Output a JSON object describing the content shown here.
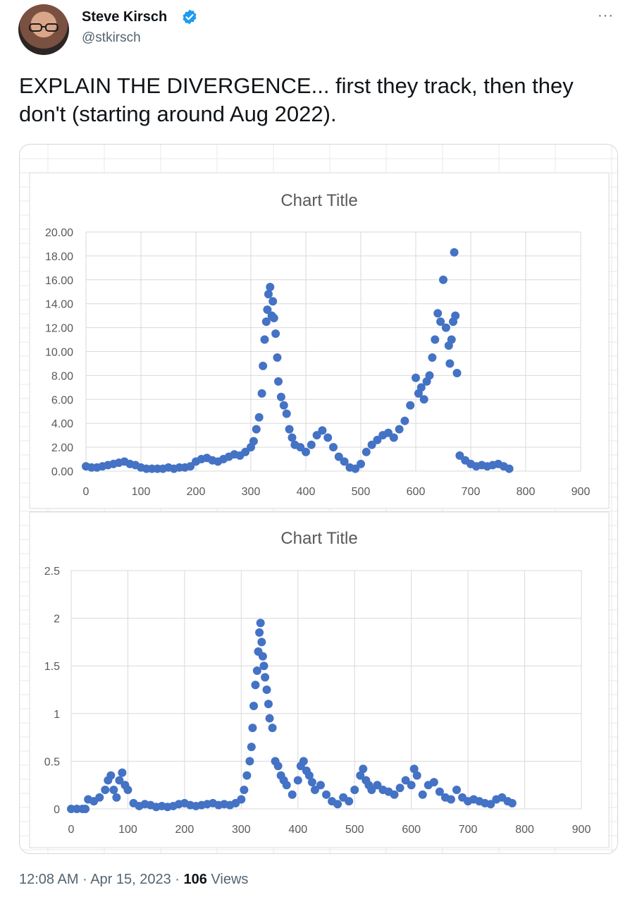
{
  "author": {
    "name": "Steve Kirsch",
    "handle": "@stkirsch",
    "verified_badge_icon": "verified-badge-icon",
    "more_icon": "more-options-icon",
    "more_glyph": "···"
  },
  "tweet": {
    "text": "EXPLAIN THE DIVERGENCE... first they track, then they don't (starting around Aug 2022)."
  },
  "footer": {
    "time": "12:08 AM",
    "sep1": " · ",
    "date": "Apr 15, 2023",
    "sep2": " · ",
    "views_count": "106",
    "views_label": " Views"
  },
  "colors": {
    "series": "#4472c4",
    "grid": "#d9d9d9",
    "axis_text": "#595959"
  },
  "chart_data": [
    {
      "type": "scatter",
      "title": "Chart Title",
      "xlim": [
        0,
        900
      ],
      "ylim": [
        0,
        20
      ],
      "x_ticks": [
        "0",
        "100",
        "200",
        "300",
        "400",
        "500",
        "600",
        "700",
        "800",
        "900"
      ],
      "y_ticks": [
        "0.00",
        "2.00",
        "4.00",
        "6.00",
        "8.00",
        "10.00",
        "12.00",
        "14.00",
        "16.00",
        "18.00",
        "20.00"
      ],
      "series": [
        {
          "x": [
            0,
            10,
            20,
            30,
            40,
            50,
            60,
            70,
            80,
            90,
            100,
            110,
            120,
            130,
            140,
            150,
            160,
            170,
            180,
            190,
            200,
            210,
            220,
            230,
            240,
            250,
            260,
            270,
            280,
            290,
            300,
            305,
            310,
            315,
            320,
            322,
            325,
            328,
            330,
            332,
            335,
            338,
            340,
            342,
            345,
            348,
            350,
            355,
            360,
            365,
            370,
            375,
            380,
            390,
            400,
            410,
            420,
            430,
            440,
            450,
            460,
            470,
            480,
            490,
            500,
            510,
            520,
            530,
            540,
            550,
            560,
            570,
            580,
            590,
            600,
            605,
            610,
            615,
            620,
            625,
            630,
            635,
            640,
            645,
            650,
            655,
            660,
            662,
            665,
            668,
            670,
            672,
            675,
            680,
            690,
            700,
            710,
            720,
            730,
            740,
            750,
            760,
            770
          ],
          "y": [
            0.4,
            0.3,
            0.3,
            0.4,
            0.5,
            0.6,
            0.7,
            0.8,
            0.6,
            0.5,
            0.3,
            0.2,
            0.2,
            0.2,
            0.2,
            0.3,
            0.2,
            0.3,
            0.3,
            0.4,
            0.8,
            1.0,
            1.1,
            0.9,
            0.8,
            1.0,
            1.2,
            1.4,
            1.3,
            1.6,
            2.0,
            2.5,
            3.5,
            4.5,
            6.5,
            8.8,
            11.0,
            12.5,
            13.5,
            14.8,
            15.4,
            13.0,
            14.2,
            12.8,
            11.5,
            9.5,
            7.5,
            6.2,
            5.5,
            4.8,
            3.5,
            2.8,
            2.2,
            2.0,
            1.6,
            2.2,
            3.0,
            3.4,
            2.8,
            2.0,
            1.2,
            0.8,
            0.3,
            0.2,
            0.6,
            1.6,
            2.2,
            2.6,
            3.0,
            3.2,
            2.8,
            3.5,
            4.2,
            5.5,
            7.8,
            6.5,
            7.0,
            6.0,
            7.5,
            8.0,
            9.5,
            11.0,
            13.2,
            12.5,
            16.0,
            12.0,
            10.5,
            9.0,
            11.0,
            12.5,
            18.3,
            13.0,
            8.2,
            1.3,
            0.9,
            0.6,
            0.4,
            0.5,
            0.4,
            0.5,
            0.6,
            0.4,
            0.2
          ]
        }
      ]
    },
    {
      "type": "scatter",
      "title": "Chart Title",
      "xlim": [
        0,
        900
      ],
      "ylim": [
        0,
        2.5
      ],
      "x_ticks": [
        "0",
        "100",
        "200",
        "300",
        "400",
        "500",
        "600",
        "700",
        "800",
        "900"
      ],
      "y_ticks": [
        "0",
        "0.5",
        "1",
        "1.5",
        "2",
        "2.5"
      ],
      "series": [
        {
          "x": [
            0,
            10,
            20,
            25,
            30,
            40,
            50,
            60,
            65,
            70,
            75,
            80,
            85,
            90,
            95,
            100,
            110,
            120,
            130,
            140,
            150,
            160,
            170,
            180,
            190,
            200,
            210,
            220,
            230,
            240,
            250,
            260,
            270,
            280,
            290,
            300,
            305,
            310,
            315,
            318,
            320,
            322,
            325,
            328,
            330,
            332,
            334,
            336,
            338,
            340,
            342,
            345,
            348,
            350,
            355,
            360,
            365,
            370,
            375,
            380,
            390,
            400,
            405,
            410,
            415,
            420,
            425,
            430,
            440,
            450,
            460,
            470,
            480,
            490,
            500,
            510,
            515,
            520,
            525,
            530,
            540,
            550,
            560,
            570,
            580,
            590,
            600,
            605,
            610,
            620,
            630,
            640,
            650,
            660,
            670,
            680,
            690,
            700,
            710,
            720,
            730,
            740,
            750,
            760,
            770,
            778
          ],
          "y": [
            0,
            0,
            0,
            0,
            0.1,
            0.08,
            0.12,
            0.2,
            0.3,
            0.35,
            0.2,
            0.12,
            0.3,
            0.38,
            0.25,
            0.2,
            0.06,
            0.03,
            0.05,
            0.04,
            0.02,
            0.03,
            0.02,
            0.03,
            0.05,
            0.06,
            0.04,
            0.03,
            0.04,
            0.05,
            0.06,
            0.04,
            0.05,
            0.04,
            0.06,
            0.1,
            0.2,
            0.35,
            0.5,
            0.65,
            0.85,
            1.08,
            1.3,
            1.45,
            1.65,
            1.85,
            1.95,
            1.75,
            1.6,
            1.5,
            1.38,
            1.25,
            1.1,
            0.95,
            0.85,
            0.5,
            0.45,
            0.35,
            0.3,
            0.25,
            0.15,
            0.3,
            0.45,
            0.5,
            0.4,
            0.35,
            0.28,
            0.2,
            0.25,
            0.15,
            0.08,
            0.05,
            0.12,
            0.08,
            0.2,
            0.35,
            0.42,
            0.3,
            0.25,
            0.2,
            0.25,
            0.2,
            0.18,
            0.15,
            0.22,
            0.3,
            0.25,
            0.42,
            0.35,
            0.15,
            0.25,
            0.28,
            0.18,
            0.12,
            0.1,
            0.2,
            0.12,
            0.08,
            0.1,
            0.08,
            0.06,
            0.05,
            0.1,
            0.12,
            0.08,
            0.06
          ]
        }
      ]
    }
  ]
}
